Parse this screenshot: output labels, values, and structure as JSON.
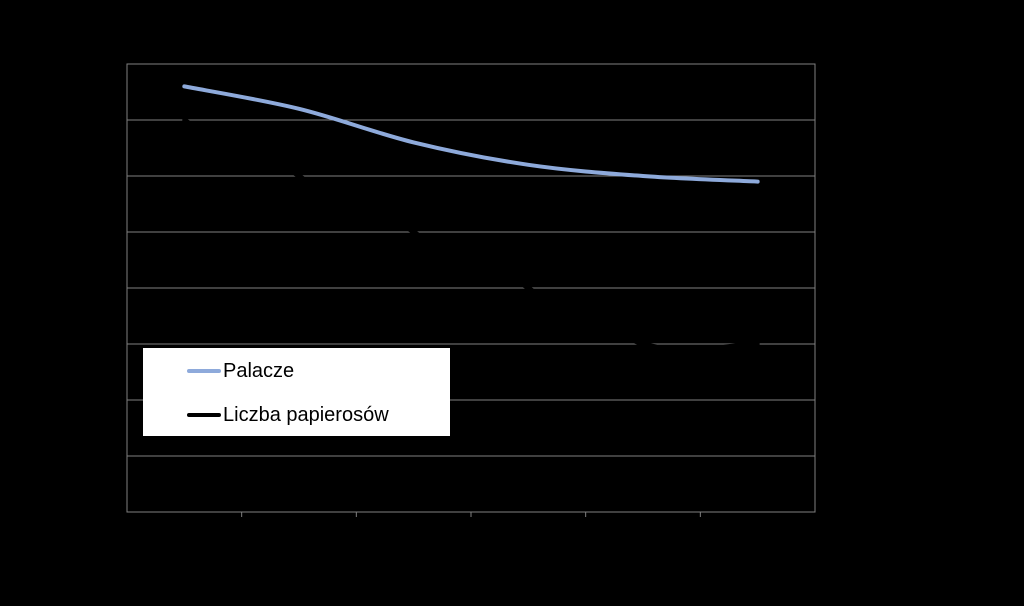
{
  "chart_data": {
    "type": "line",
    "title": "",
    "xlabel": "",
    "ylabel": "",
    "categories": [
      "",
      "",
      "",
      "",
      "",
      ""
    ],
    "ylim": [
      0,
      8
    ],
    "grid": true,
    "legend_position": "lower-left",
    "series": [
      {
        "name": "Palacze",
        "color": "#8eaadb",
        "values": [
          7.6,
          7.2,
          6.6,
          6.2,
          6.0,
          5.9
        ]
      },
      {
        "name": "Liczba papierosów",
        "color": "#000000",
        "values": [
          7.0,
          6.0,
          5.0,
          4.0,
          3.0,
          3.0
        ]
      }
    ]
  }
}
